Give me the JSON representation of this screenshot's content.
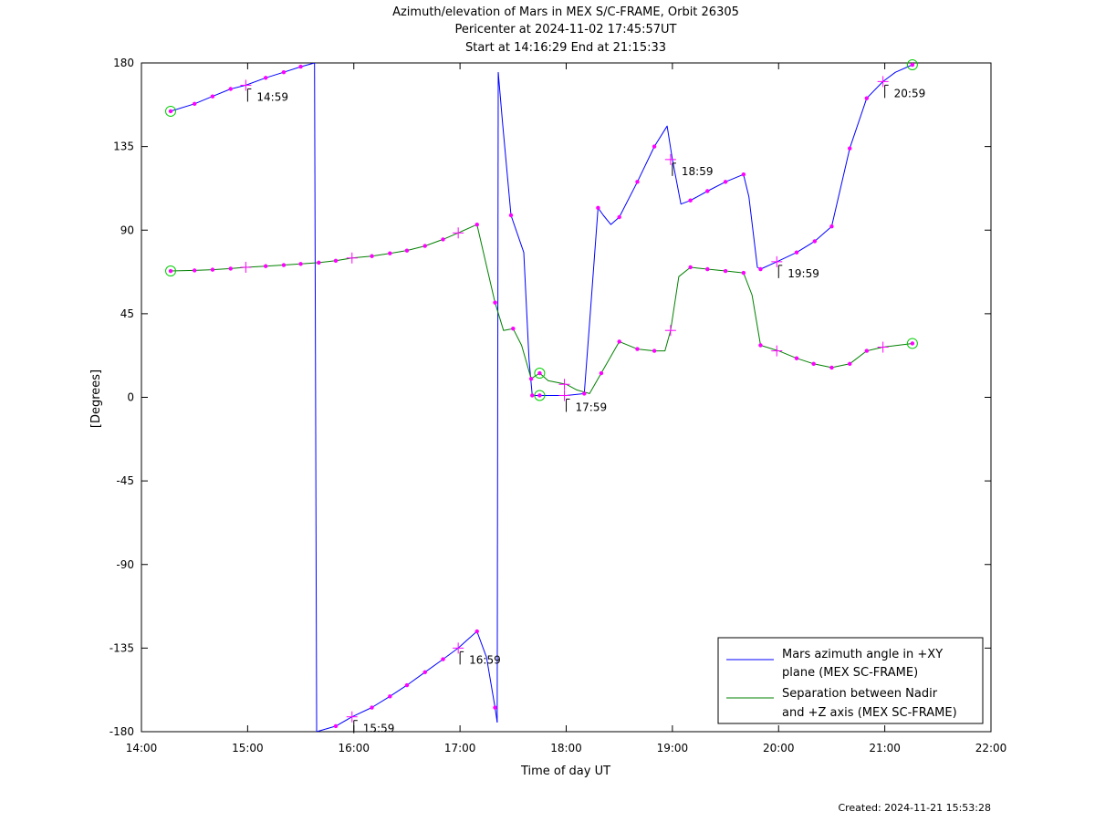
{
  "chart_data": {
    "type": "line",
    "title_lines": [
      "Azimuth/elevation of Mars in MEX S/C-FRAME,  Orbit 26305",
      "Pericenter at 2024-11-02 17:45:57UT",
      "Start at 14:16:29 End at 21:15:33"
    ],
    "xlabel": "Time of day UT",
    "ylabel": "[Degrees]",
    "xlim": [
      14.0,
      22.0
    ],
    "ylim": [
      -180,
      180
    ],
    "x_ticks": [
      {
        "v": 14,
        "label": "14:00"
      },
      {
        "v": 15,
        "label": "15:00"
      },
      {
        "v": 16,
        "label": "16:00"
      },
      {
        "v": 17,
        "label": "17:00"
      },
      {
        "v": 18,
        "label": "18:00"
      },
      {
        "v": 19,
        "label": "19:00"
      },
      {
        "v": 20,
        "label": "20:00"
      },
      {
        "v": 21,
        "label": "21:00"
      },
      {
        "v": 22,
        "label": "22:00"
      }
    ],
    "y_ticks": [
      {
        "v": 180,
        "label": "180"
      },
      {
        "v": 135,
        "label": "135"
      },
      {
        "v": 90,
        "label": "90"
      },
      {
        "v": 45,
        "label": "45"
      },
      {
        "v": 0,
        "label": "0"
      },
      {
        "v": -45,
        "label": "-45"
      },
      {
        "v": -90,
        "label": "-90"
      },
      {
        "v": -135,
        "label": "-135"
      },
      {
        "v": -180,
        "label": "-180"
      }
    ],
    "grid": false,
    "legend_position": "bottom-right",
    "series": [
      {
        "name": "Mars azimuth angle in +XY plane (MEX SC-FRAME)",
        "legend_lines": [
          "Mars azimuth angle in +XY",
          "plane (MEX SC-FRAME)"
        ],
        "color": "#0000ff",
        "segments": [
          [
            [
              14.275,
              154
            ],
            [
              14.5,
              158
            ],
            [
              14.67,
              162
            ],
            [
              14.84,
              166
            ],
            [
              14.983,
              168
            ],
            [
              15.17,
              172
            ],
            [
              15.34,
              175
            ],
            [
              15.5,
              178
            ],
            [
              15.63,
              180
            ]
          ],
          [
            [
              15.65,
              -180
            ],
            [
              15.83,
              -177
            ],
            [
              15.983,
              -172
            ],
            [
              16.17,
              -167
            ],
            [
              16.34,
              -161
            ],
            [
              16.5,
              -155
            ],
            [
              16.67,
              -148
            ],
            [
              16.84,
              -141
            ],
            [
              16.983,
              -135
            ],
            [
              17.08,
              -130
            ],
            [
              17.16,
              -126
            ],
            [
              17.25,
              -140
            ],
            [
              17.33,
              -167
            ],
            [
              17.35,
              -175
            ]
          ],
          [
            [
              17.36,
              175
            ],
            [
              17.4,
              148
            ],
            [
              17.48,
              98
            ],
            [
              17.6,
              78
            ],
            [
              17.65,
              20
            ],
            [
              17.68,
              1
            ],
            [
              17.75,
              1
            ],
            [
              18.0,
              1
            ],
            [
              18.17,
              2
            ],
            [
              18.22,
              40
            ],
            [
              18.3,
              102
            ],
            [
              18.35,
              98
            ],
            [
              18.42,
              93
            ],
            [
              18.5,
              97
            ],
            [
              18.67,
              116
            ],
            [
              18.83,
              135
            ],
            [
              18.95,
              146
            ],
            [
              19.0,
              128
            ],
            [
              19.08,
              104
            ],
            [
              19.17,
              106
            ],
            [
              19.33,
              111
            ],
            [
              19.5,
              116
            ],
            [
              19.67,
              120
            ],
            [
              19.72,
              108
            ],
            [
              19.8,
              70
            ],
            [
              19.83,
              69
            ],
            [
              19.983,
              73
            ],
            [
              20.17,
              78
            ],
            [
              20.34,
              84
            ],
            [
              20.5,
              92
            ],
            [
              20.67,
              134
            ],
            [
              20.83,
              161
            ],
            [
              20.983,
              170
            ],
            [
              21.1,
              175
            ],
            [
              21.26,
              179
            ]
          ]
        ],
        "markers": [
          [
            14.5,
            158
          ],
          [
            14.67,
            162
          ],
          [
            14.84,
            166
          ],
          [
            15.17,
            172
          ],
          [
            15.34,
            175
          ],
          [
            15.5,
            178
          ],
          [
            15.83,
            -177
          ],
          [
            16.17,
            -167
          ],
          [
            16.34,
            -161
          ],
          [
            16.5,
            -155
          ],
          [
            16.67,
            -148
          ],
          [
            16.84,
            -141
          ],
          [
            17.16,
            -126
          ],
          [
            17.33,
            -167
          ],
          [
            17.48,
            98
          ],
          [
            17.68,
            1
          ],
          [
            18.17,
            2
          ],
          [
            18.3,
            102
          ],
          [
            18.5,
            97
          ],
          [
            18.67,
            116
          ],
          [
            18.83,
            135
          ],
          [
            19.17,
            106
          ],
          [
            19.33,
            111
          ],
          [
            19.5,
            116
          ],
          [
            19.67,
            120
          ],
          [
            19.83,
            69
          ],
          [
            20.17,
            78
          ],
          [
            20.34,
            84
          ],
          [
            20.5,
            92
          ],
          [
            20.67,
            134
          ],
          [
            20.83,
            161
          ]
        ],
        "hour_marks": [
          [
            14.983,
            168
          ],
          [
            15.983,
            -172
          ],
          [
            16.983,
            -135
          ],
          [
            17.983,
            1
          ],
          [
            18.983,
            128
          ],
          [
            19.983,
            73
          ],
          [
            20.983,
            170
          ]
        ],
        "endpoints": [
          [
            14.275,
            154
          ],
          [
            17.75,
            1
          ],
          [
            21.26,
            179
          ]
        ]
      },
      {
        "name": "Separation between Nadir and +Z axis (MEX SC-FRAME)",
        "legend_lines": [
          "Separation between Nadir",
          "and +Z axis (MEX SC-FRAME)"
        ],
        "color": "#008000",
        "segments": [
          [
            [
              14.275,
              68
            ],
            [
              14.5,
              68.3
            ],
            [
              14.67,
              68.7
            ],
            [
              14.84,
              69.3
            ],
            [
              14.983,
              70
            ],
            [
              15.17,
              70.6
            ],
            [
              15.34,
              71.2
            ],
            [
              15.5,
              71.8
            ],
            [
              15.67,
              72.5
            ],
            [
              15.83,
              73.5
            ],
            [
              15.983,
              75
            ],
            [
              16.17,
              76
            ],
            [
              16.34,
              77.5
            ],
            [
              16.5,
              79
            ],
            [
              16.67,
              81.5
            ],
            [
              16.84,
              85
            ],
            [
              16.983,
              88.5
            ],
            [
              17.16,
              93
            ],
            [
              17.33,
              51
            ],
            [
              17.41,
              36
            ],
            [
              17.5,
              37
            ],
            [
              17.58,
              28
            ],
            [
              17.67,
              10
            ],
            [
              17.75,
              13
            ],
            [
              17.83,
              9
            ],
            [
              18.0,
              7
            ],
            [
              18.1,
              4
            ],
            [
              18.22,
              2
            ],
            [
              18.33,
              13
            ],
            [
              18.5,
              30
            ],
            [
              18.67,
              26
            ],
            [
              18.83,
              25
            ],
            [
              18.93,
              25
            ],
            [
              18.983,
              36
            ],
            [
              19.06,
              65
            ],
            [
              19.17,
              70
            ],
            [
              19.33,
              69
            ],
            [
              19.5,
              68
            ],
            [
              19.67,
              67
            ],
            [
              19.75,
              55
            ],
            [
              19.83,
              28
            ],
            [
              20.0,
              25
            ],
            [
              20.17,
              21
            ],
            [
              20.33,
              18
            ],
            [
              20.5,
              16
            ],
            [
              20.67,
              18
            ],
            [
              20.83,
              25
            ],
            [
              20.983,
              27
            ],
            [
              21.26,
              29
            ]
          ]
        ],
        "markers": [
          [
            14.5,
            68.3
          ],
          [
            14.67,
            68.7
          ],
          [
            14.84,
            69.3
          ],
          [
            15.17,
            70.6
          ],
          [
            15.34,
            71.2
          ],
          [
            15.5,
            71.8
          ],
          [
            15.67,
            72.5
          ],
          [
            15.83,
            73.5
          ],
          [
            16.17,
            76
          ],
          [
            16.34,
            77.5
          ],
          [
            16.5,
            79
          ],
          [
            16.67,
            81.5
          ],
          [
            16.84,
            85
          ],
          [
            17.16,
            93
          ],
          [
            17.33,
            51
          ],
          [
            17.5,
            37
          ],
          [
            17.67,
            10
          ],
          [
            18.33,
            13
          ],
          [
            18.5,
            30
          ],
          [
            18.67,
            26
          ],
          [
            18.83,
            25
          ],
          [
            19.17,
            70
          ],
          [
            19.33,
            69
          ],
          [
            19.5,
            68
          ],
          [
            19.67,
            67
          ],
          [
            19.83,
            28
          ],
          [
            20.17,
            21
          ],
          [
            20.33,
            18
          ],
          [
            20.5,
            16
          ],
          [
            20.67,
            18
          ],
          [
            20.83,
            25
          ]
        ],
        "hour_marks": [
          [
            14.983,
            70
          ],
          [
            15.983,
            75
          ],
          [
            16.983,
            88.5
          ],
          [
            17.983,
            7
          ],
          [
            18.983,
            36
          ],
          [
            19.983,
            25
          ],
          [
            20.983,
            27
          ]
        ],
        "endpoints": [
          [
            14.275,
            68
          ],
          [
            17.75,
            13
          ],
          [
            21.26,
            29
          ]
        ]
      }
    ],
    "marker_color": "#ff00ff",
    "endpoint_color": "#00cc00",
    "annotations": [
      {
        "x": 14.983,
        "y": 168,
        "label": "14:59"
      },
      {
        "x": 15.983,
        "y": -172,
        "label": "15:59"
      },
      {
        "x": 16.983,
        "y": -135,
        "label": "16:59"
      },
      {
        "x": 17.983,
        "y": 1,
        "label": "17:59"
      },
      {
        "x": 18.983,
        "y": 128,
        "label": "18:59"
      },
      {
        "x": 19.983,
        "y": 73,
        "label": "19:59"
      },
      {
        "x": 20.983,
        "y": 170,
        "label": "20:59"
      }
    ]
  },
  "footer": {
    "created": "Created: 2024-11-21 15:53:28"
  }
}
